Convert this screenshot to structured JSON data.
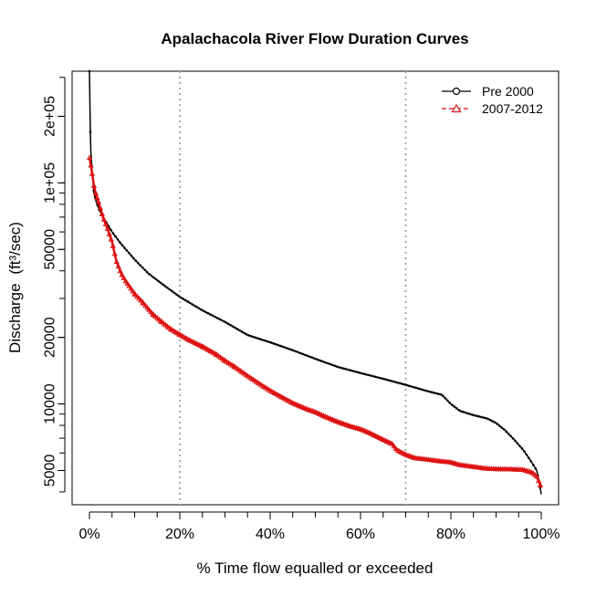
{
  "chart_data": {
    "type": "line",
    "title": "Apalachacola River Flow Duration Curves",
    "xlabel": "% Time flow equalled or exceeded",
    "ylabel": "Discharge",
    "ylabel_unit": "(ft³/sec)",
    "y_scale": "log",
    "xlim": [
      0,
      100
    ],
    "ylim": [
      3500,
      320000
    ],
    "x_ticks": [
      0,
      20,
      40,
      60,
      80,
      100
    ],
    "x_tick_labels": [
      "0%",
      "20%",
      "40%",
      "60%",
      "80%",
      "100%"
    ],
    "y_ticks": [
      5000,
      10000,
      20000,
      50000,
      100000,
      200000
    ],
    "y_tick_labels": [
      "5000",
      "10000",
      "20000",
      "50000",
      "1e+05",
      "2e+05"
    ],
    "reference_lines_x": [
      20,
      70
    ],
    "legend_position": "top-right",
    "series": [
      {
        "name": "Pre 2000",
        "color": "#000000",
        "marker": "circle",
        "x": [
          0,
          0.1,
          0.2,
          0.3,
          0.5,
          0.7,
          1,
          1.5,
          2,
          3,
          4,
          5,
          7,
          10,
          13,
          16,
          20,
          25,
          30,
          35,
          40,
          45,
          50,
          55,
          60,
          65,
          70,
          75,
          78,
          80,
          82,
          85,
          88,
          90,
          92,
          94,
          96,
          97,
          98,
          99,
          99.5,
          100
        ],
        "y": [
          320000,
          230000,
          170000,
          140000,
          120000,
          105000,
          90000,
          82000,
          77000,
          70000,
          65000,
          60000,
          53000,
          45000,
          39000,
          35000,
          30500,
          26500,
          23500,
          20500,
          19000,
          17500,
          16000,
          14700,
          13800,
          13000,
          12200,
          11400,
          11000,
          10000,
          9300,
          8900,
          8600,
          8200,
          7600,
          6900,
          6200,
          5800,
          5400,
          5000,
          4500,
          3900
        ]
      },
      {
        "name": "2007-2012",
        "color": "#dd1111",
        "marker": "triangle",
        "x": [
          0,
          0.3,
          0.6,
          1,
          1.5,
          2,
          3,
          4,
          5,
          6,
          7,
          8,
          10,
          12,
          14,
          16,
          18,
          20,
          22,
          25,
          28,
          30,
          32,
          35,
          38,
          40,
          42,
          45,
          48,
          50,
          52,
          55,
          58,
          60,
          62,
          65,
          67,
          68,
          70,
          72,
          75,
          78,
          80,
          82,
          85,
          88,
          90,
          92,
          94,
          96,
          98,
          99,
          100
        ],
        "y": [
          130000,
          120000,
          110000,
          97000,
          88000,
          82000,
          70000,
          62000,
          54000,
          44000,
          39000,
          36000,
          31500,
          28500,
          25500,
          23500,
          21800,
          20600,
          19500,
          18200,
          16800,
          15700,
          14800,
          13400,
          12200,
          11500,
          10900,
          10100,
          9500,
          9200,
          8800,
          8300,
          7900,
          7700,
          7400,
          6900,
          6600,
          6200,
          5900,
          5700,
          5600,
          5500,
          5450,
          5300,
          5200,
          5100,
          5080,
          5070,
          5060,
          5040,
          4900,
          4700,
          4200
        ]
      }
    ]
  }
}
